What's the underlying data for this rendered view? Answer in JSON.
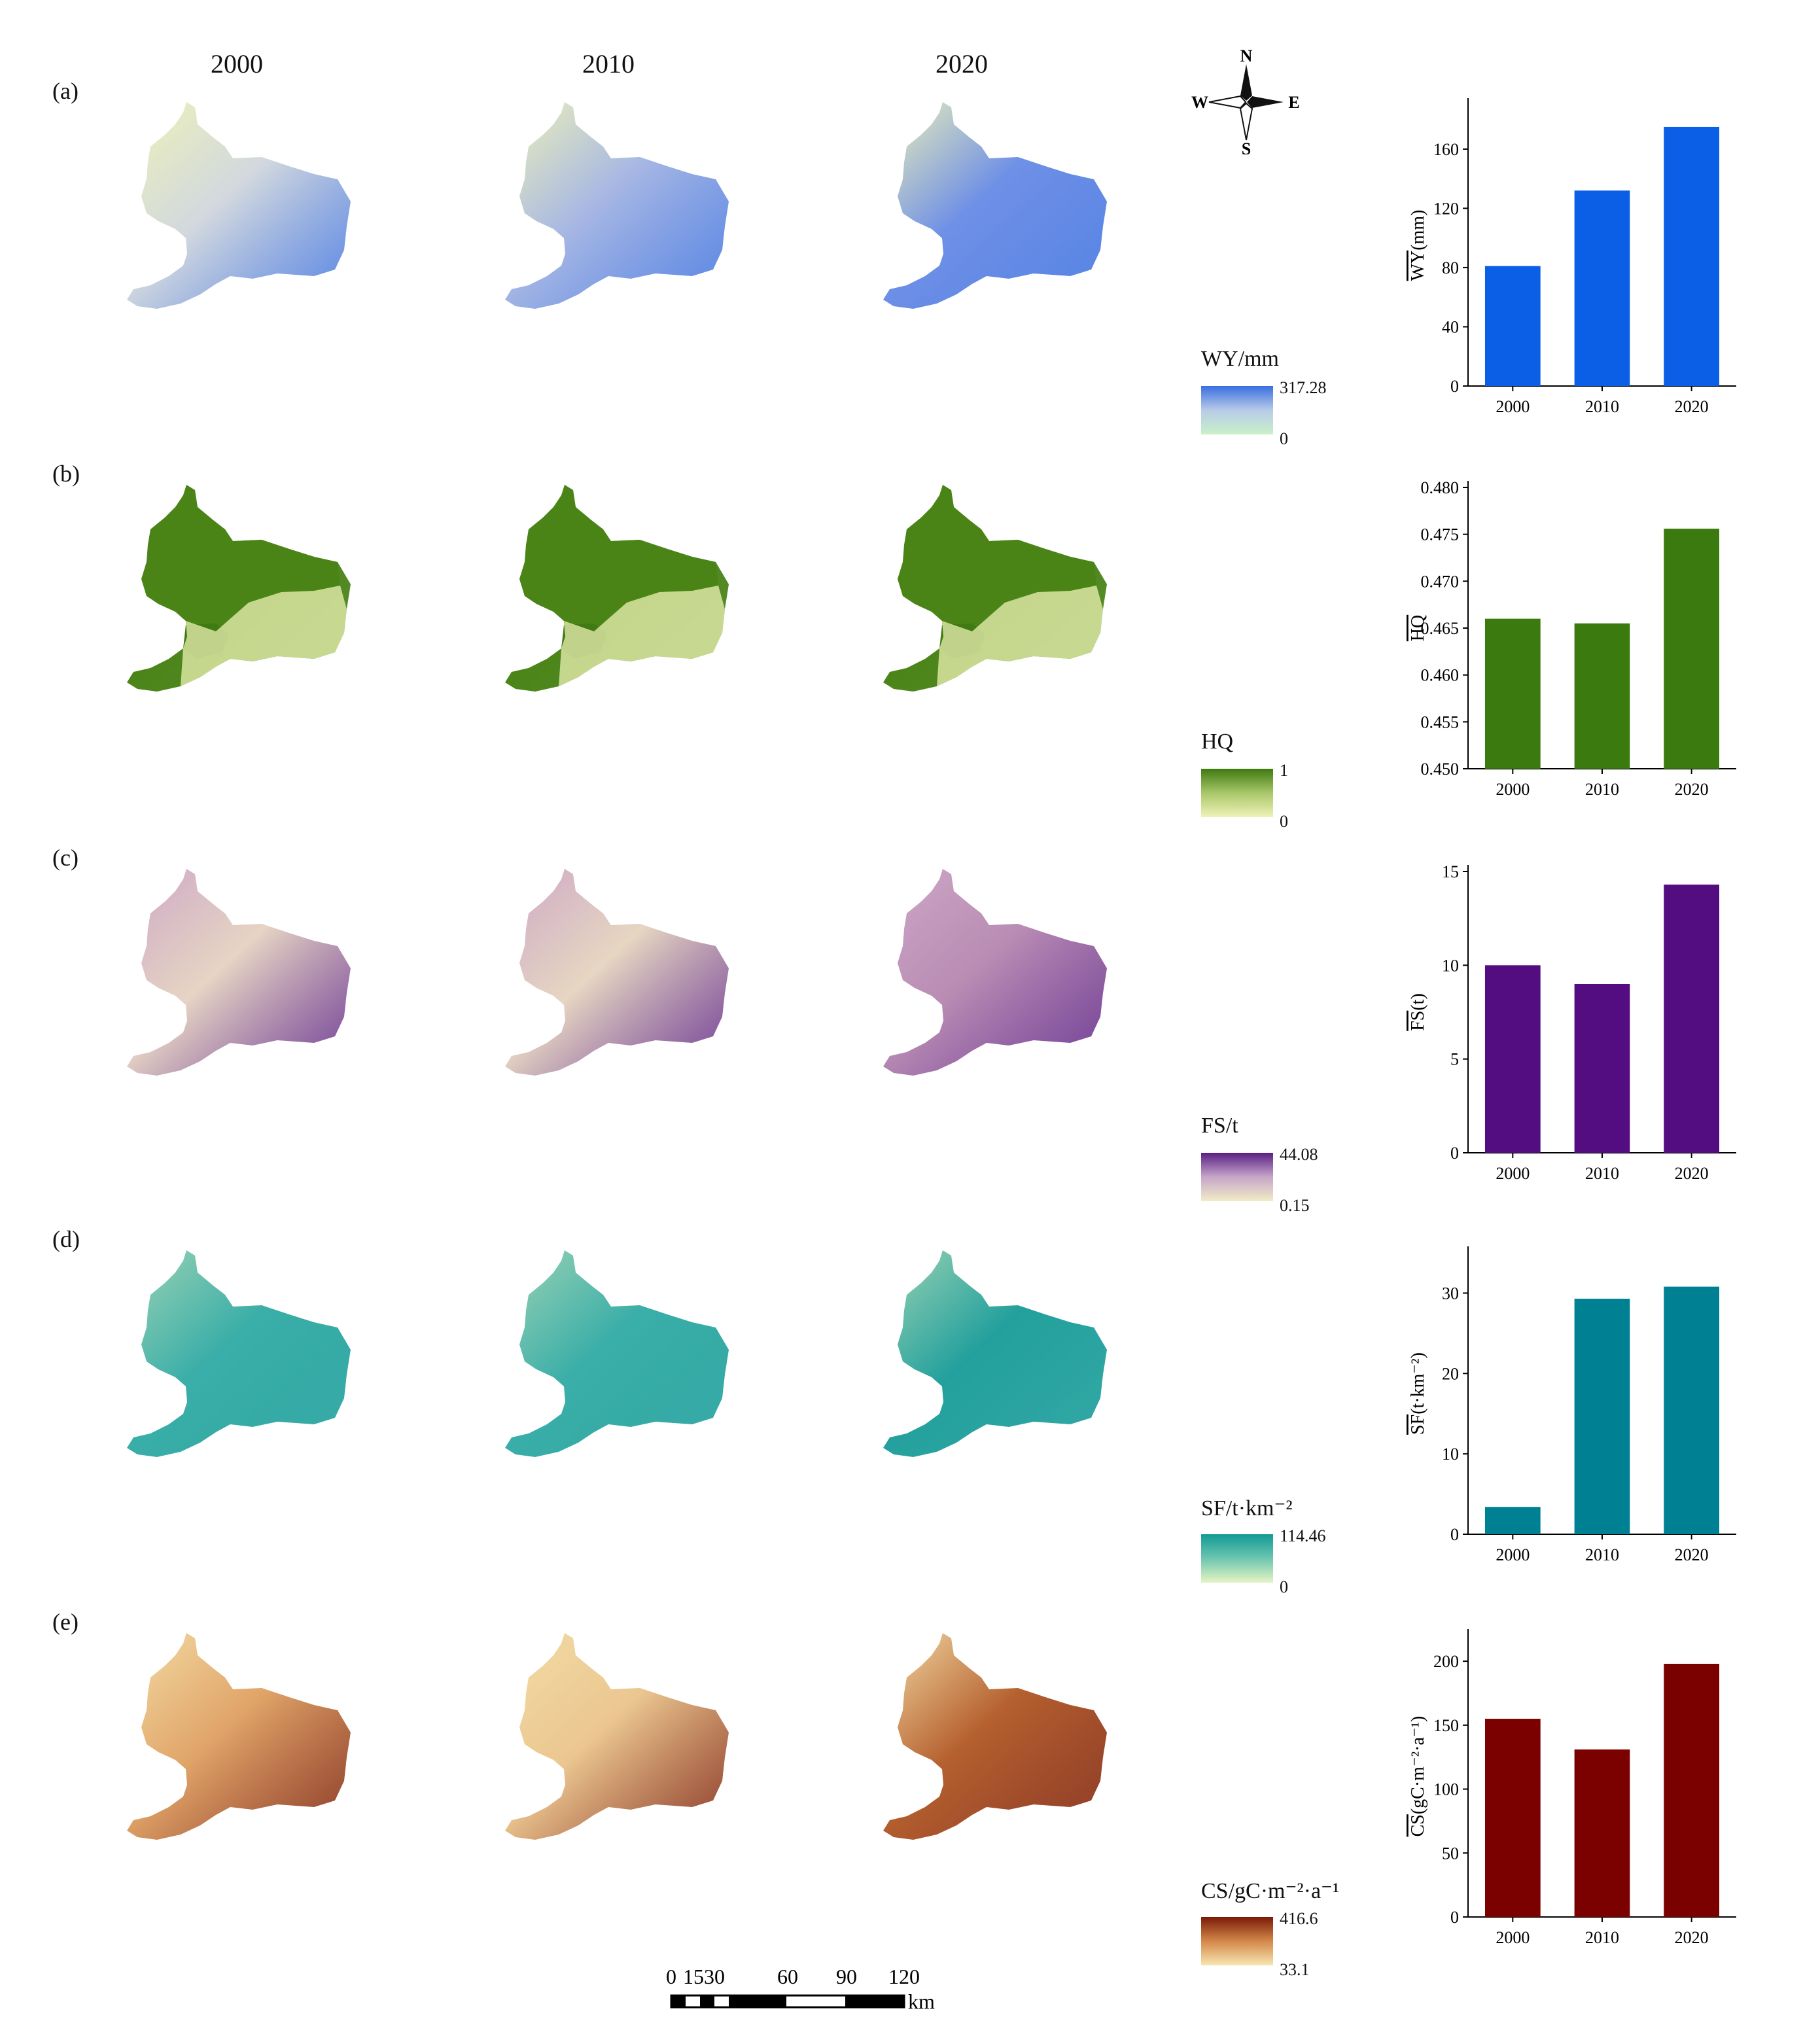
{
  "years": [
    "2000",
    "2010",
    "2020"
  ],
  "rows": [
    {
      "label": "(a)",
      "legend_title": "WY/mm",
      "legend_max": "317.28",
      "legend_min": "0",
      "ramp_top": "#3a6fe0",
      "ramp_mid": "#b8cbe8",
      "ramp_bot": "#c9f0c8",
      "map_colors": [
        "#d2d8de",
        "#a7b7e4",
        "#6f90e6"
      ],
      "map_accent": "#eef2b8"
    },
    {
      "label": "(b)",
      "legend_title": "HQ",
      "legend_max": "1",
      "legend_min": "0",
      "ramp_top": "#3e7b10",
      "ramp_mid": "#a9c76a",
      "ramp_bot": "#f0f3b8",
      "map_colors": [
        "#4a8416",
        "#4a8416",
        "#4a8416"
      ],
      "map_accent": "#eef2b3"
    },
    {
      "label": "(c)",
      "legend_title": "FS/t",
      "legend_max": "44.08",
      "legend_min": "0.15",
      "ramp_top": "#5a1f85",
      "ramp_mid": "#c6a6c8",
      "ramp_bot": "#f2ecc8",
      "map_colors": [
        "#e6d4c4",
        "#e6d6c2",
        "#b98cb4"
      ],
      "map_accent": "#cda8c6"
    },
    {
      "label": "(d)",
      "legend_title": "SF/t·km⁻²",
      "legend_max": "114.46",
      "legend_min": "0",
      "ramp_top": "#119a96",
      "ramp_mid": "#6dc6b0",
      "ramp_bot": "#e6f4c4",
      "map_colors": [
        "#3aaea8",
        "#3aaea8",
        "#23a09d"
      ],
      "map_accent": "#9dd3b4"
    },
    {
      "label": "(e)",
      "legend_title": "CS/gC·m⁻²·a⁻¹",
      "legend_max": "416.6",
      "legend_min": "33.1",
      "ramp_top": "#7a1a05",
      "ramp_mid": "#d4884a",
      "ramp_bot": "#f7e7b0",
      "map_colors": [
        "#e0a468",
        "#ebc690",
        "#b5602e"
      ],
      "map_accent": "#f3dca6"
    }
  ],
  "compass": {
    "n": "N",
    "s": "S",
    "w": "W",
    "e": "E"
  },
  "scalebar": {
    "ticks": [
      "0",
      "15",
      "30",
      "60",
      "90",
      "120"
    ],
    "unit": "km"
  },
  "chart_data": [
    {
      "type": "bar",
      "categories": [
        "2000",
        "2010",
        "2020"
      ],
      "values": [
        81,
        132,
        175
      ],
      "ylabel": "WY(mm)",
      "ylim": [
        0,
        190
      ],
      "yticks": [
        "0",
        "40",
        "80",
        "120",
        "160"
      ],
      "color": "#0a5fe6",
      "grid": false,
      "overline": 2
    },
    {
      "type": "bar",
      "categories": [
        "2000",
        "2010",
        "2020"
      ],
      "values": [
        0.466,
        0.4655,
        0.4756
      ],
      "ylabel": "HQ",
      "ylim": [
        0.45,
        0.48
      ],
      "yticks": [
        "0.450",
        "0.455",
        "0.460",
        "0.465",
        "0.470",
        "0.475",
        "0.480"
      ],
      "color": "#3a7a0e",
      "grid": false,
      "overline": 2
    },
    {
      "type": "bar",
      "categories": [
        "2000",
        "2010",
        "2020"
      ],
      "values": [
        10.0,
        9.0,
        14.3
      ],
      "ylabel": "FS(t)",
      "ylim": [
        0,
        15
      ],
      "yticks": [
        "0",
        "5",
        "10",
        "15"
      ],
      "color": "#530d80",
      "grid": false,
      "overline": 2
    },
    {
      "type": "bar",
      "categories": [
        "2000",
        "2010",
        "2020"
      ],
      "values": [
        3.4,
        29.3,
        30.8
      ],
      "ylabel": "SF(t·km⁻²)",
      "ylim": [
        0,
        35
      ],
      "yticks": [
        "0",
        "10",
        "20",
        "30"
      ],
      "color": "#008193",
      "grid": false,
      "overline": 2
    },
    {
      "type": "bar",
      "categories": [
        "2000",
        "2010",
        "2020"
      ],
      "values": [
        155,
        131,
        198
      ],
      "ylabel": "CS(gC·m⁻²·a⁻¹)",
      "ylim": [
        0,
        220
      ],
      "yticks": [
        "0",
        "50",
        "100",
        "150",
        "200"
      ],
      "color": "#7b0000",
      "grid": false,
      "overline": 2
    }
  ]
}
